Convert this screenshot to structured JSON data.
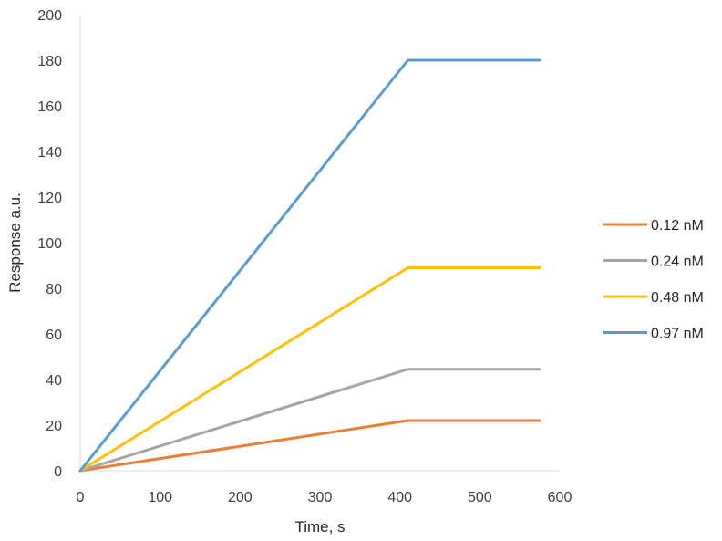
{
  "chart_data": {
    "type": "line",
    "title": "",
    "xlabel": "Time, s",
    "ylabel": "Response a.u.",
    "xlim": [
      0,
      600
    ],
    "ylim": [
      0,
      200
    ],
    "x_ticks": [
      0,
      100,
      200,
      300,
      400,
      500,
      600
    ],
    "y_ticks": [
      0,
      20,
      40,
      60,
      80,
      100,
      120,
      140,
      160,
      180,
      200
    ],
    "grid": false,
    "legend_position": "right",
    "series": [
      {
        "name": "0.12 nM",
        "color": "#ED7D31",
        "x": [
          0,
          410,
          575
        ],
        "y": [
          0,
          22,
          22
        ]
      },
      {
        "name": "0.24 nM",
        "color": "#A5A5A5",
        "x": [
          0,
          410,
          575
        ],
        "y": [
          0,
          44.5,
          44.5
        ]
      },
      {
        "name": "0.48 nM",
        "color": "#FFC000",
        "x": [
          0,
          410,
          575
        ],
        "y": [
          0,
          89,
          89
        ]
      },
      {
        "name": "0.97 nM",
        "color": "#5B9BD5",
        "x": [
          0,
          410,
          575
        ],
        "y": [
          0,
          180,
          180
        ]
      }
    ]
  }
}
